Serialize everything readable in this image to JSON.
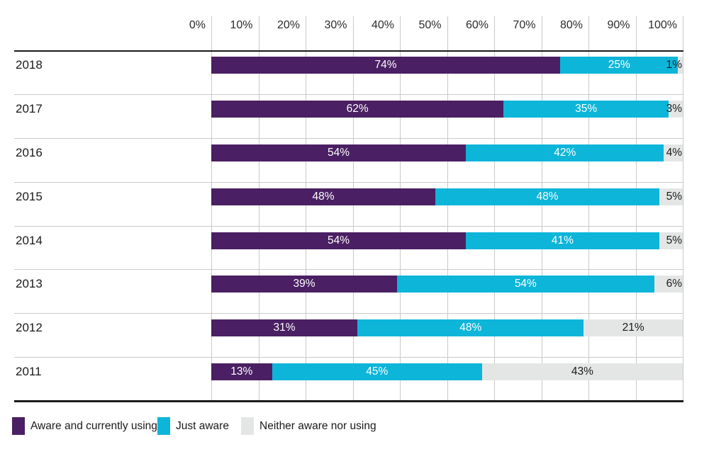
{
  "chart_data": {
    "type": "bar",
    "orientation": "horizontal",
    "stacked": true,
    "title": "",
    "categories": [
      "2018",
      "2017",
      "2016",
      "2015",
      "2014",
      "2013",
      "2012",
      "2011"
    ],
    "series": [
      {
        "name": "Aware and currently using",
        "color": "#4a1f63",
        "values": [
          74,
          62,
          54,
          48,
          54,
          39,
          31,
          13
        ],
        "labels": [
          "74%",
          "62%",
          "54%",
          "48%",
          "54%",
          "39%",
          "31%",
          "13%"
        ]
      },
      {
        "name": "Just aware",
        "color": "#0db5d9",
        "values": [
          25,
          35,
          42,
          48,
          41,
          54,
          48,
          45
        ],
        "labels": [
          "25%",
          "35%",
          "42%",
          "48%",
          "41%",
          "54%",
          "48%",
          "45%"
        ]
      },
      {
        "name": "Neither aware nor using",
        "color": "#e4e6e5",
        "values": [
          1,
          3,
          4,
          5,
          5,
          6,
          21,
          43
        ],
        "labels": [
          "1%",
          "3%",
          "4%",
          "5%",
          "5%",
          "6%",
          "21%",
          "43%"
        ]
      }
    ],
    "x_axis": {
      "position": "top",
      "min": 0,
      "max": 100,
      "ticks": [
        "0%",
        "10%",
        "20%",
        "30%",
        "40%",
        "50%",
        "60%",
        "70%",
        "80%",
        "90%",
        "100%"
      ],
      "grid": true
    },
    "legend_position": "bottom"
  },
  "colors": {
    "gridline": "#c9c9c9",
    "axis_line": "#1a1a1a",
    "axis_text": "#2b2b2b",
    "category_text": "#1a1a1a",
    "bar_label_light": "#ffffff",
    "bar_label_dark": "#1a1a1a",
    "legend_text": "#1a1a1a",
    "background": "#ffffff"
  }
}
